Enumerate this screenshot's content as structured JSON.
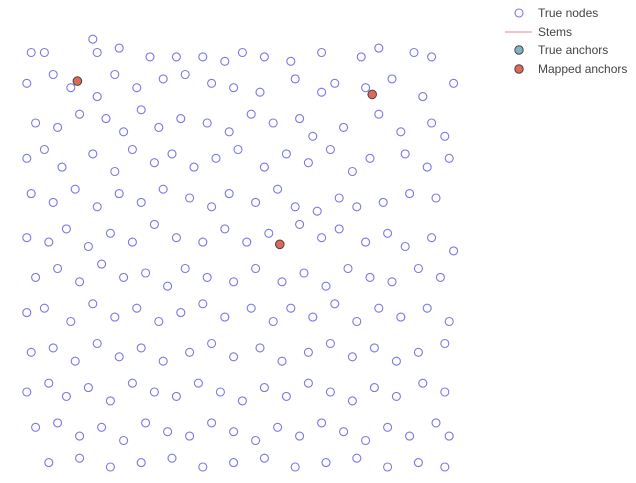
{
  "chart_data": {
    "type": "scatter",
    "title": "",
    "xlabel": "",
    "ylabel": "",
    "xlim": [
      0,
      1
    ],
    "ylim": [
      0,
      1
    ],
    "grid": false,
    "legend_position": "top-right",
    "colors": {
      "true_nodes": "#7b78e6",
      "stems": "#e88a8a",
      "true_anchors": "#7fb4c4",
      "mapped_anchors": "#e0685a",
      "anchor_edge": "#444444"
    },
    "legend": [
      {
        "key": "true_nodes",
        "label": "True nodes",
        "symbol": "open-circle"
      },
      {
        "key": "stems",
        "label": "Stems",
        "symbol": "line"
      },
      {
        "key": "true_anchors",
        "label": "True anchors",
        "symbol": "filled-circle"
      },
      {
        "key": "mapped_anchors",
        "label": "Mapped anchors",
        "symbol": "filled-circle"
      }
    ],
    "series": [
      {
        "key": "mapped_anchors",
        "points": [
          [
            0.135,
            0.875
          ],
          [
            0.805,
            0.845
          ],
          [
            0.595,
            0.505
          ]
        ]
      },
      {
        "key": "true_nodes",
        "points": [
          [
            0.03,
            0.94
          ],
          [
            0.06,
            0.94
          ],
          [
            0.17,
            0.97
          ],
          [
            0.18,
            0.94
          ],
          [
            0.23,
            0.95
          ],
          [
            0.3,
            0.93
          ],
          [
            0.36,
            0.93
          ],
          [
            0.42,
            0.93
          ],
          [
            0.47,
            0.92
          ],
          [
            0.51,
            0.94
          ],
          [
            0.56,
            0.93
          ],
          [
            0.62,
            0.92
          ],
          [
            0.69,
            0.94
          ],
          [
            0.78,
            0.93
          ],
          [
            0.82,
            0.95
          ],
          [
            0.9,
            0.94
          ],
          [
            0.94,
            0.93
          ],
          [
            0.02,
            0.87
          ],
          [
            0.08,
            0.89
          ],
          [
            0.12,
            0.86
          ],
          [
            0.18,
            0.84
          ],
          [
            0.22,
            0.89
          ],
          [
            0.27,
            0.86
          ],
          [
            0.33,
            0.88
          ],
          [
            0.38,
            0.89
          ],
          [
            0.44,
            0.87
          ],
          [
            0.49,
            0.86
          ],
          [
            0.55,
            0.85
          ],
          [
            0.63,
            0.88
          ],
          [
            0.69,
            0.85
          ],
          [
            0.72,
            0.87
          ],
          [
            0.79,
            0.86
          ],
          [
            0.85,
            0.88
          ],
          [
            0.92,
            0.84
          ],
          [
            0.99,
            0.87
          ],
          [
            0.04,
            0.78
          ],
          [
            0.09,
            0.77
          ],
          [
            0.14,
            0.8
          ],
          [
            0.2,
            0.79
          ],
          [
            0.24,
            0.76
          ],
          [
            0.28,
            0.81
          ],
          [
            0.32,
            0.77
          ],
          [
            0.37,
            0.79
          ],
          [
            0.43,
            0.78
          ],
          [
            0.48,
            0.76
          ],
          [
            0.53,
            0.8
          ],
          [
            0.58,
            0.78
          ],
          [
            0.64,
            0.79
          ],
          [
            0.67,
            0.75
          ],
          [
            0.74,
            0.77
          ],
          [
            0.82,
            0.8
          ],
          [
            0.87,
            0.76
          ],
          [
            0.94,
            0.78
          ],
          [
            0.97,
            0.75
          ],
          [
            0.02,
            0.7
          ],
          [
            0.06,
            0.72
          ],
          [
            0.1,
            0.68
          ],
          [
            0.17,
            0.71
          ],
          [
            0.22,
            0.67
          ],
          [
            0.26,
            0.72
          ],
          [
            0.31,
            0.69
          ],
          [
            0.35,
            0.71
          ],
          [
            0.4,
            0.68
          ],
          [
            0.45,
            0.7
          ],
          [
            0.5,
            0.72
          ],
          [
            0.56,
            0.68
          ],
          [
            0.61,
            0.71
          ],
          [
            0.66,
            0.69
          ],
          [
            0.71,
            0.72
          ],
          [
            0.76,
            0.67
          ],
          [
            0.8,
            0.7
          ],
          [
            0.88,
            0.71
          ],
          [
            0.93,
            0.68
          ],
          [
            0.98,
            0.7
          ],
          [
            0.03,
            0.62
          ],
          [
            0.08,
            0.6
          ],
          [
            0.13,
            0.63
          ],
          [
            0.18,
            0.59
          ],
          [
            0.23,
            0.62
          ],
          [
            0.28,
            0.6
          ],
          [
            0.33,
            0.63
          ],
          [
            0.39,
            0.61
          ],
          [
            0.44,
            0.59
          ],
          [
            0.48,
            0.62
          ],
          [
            0.54,
            0.6
          ],
          [
            0.59,
            0.63
          ],
          [
            0.63,
            0.59
          ],
          [
            0.68,
            0.58
          ],
          [
            0.73,
            0.61
          ],
          [
            0.77,
            0.59
          ],
          [
            0.83,
            0.6
          ],
          [
            0.89,
            0.62
          ],
          [
            0.95,
            0.61
          ],
          [
            0.02,
            0.52
          ],
          [
            0.07,
            0.51
          ],
          [
            0.11,
            0.54
          ],
          [
            0.16,
            0.5
          ],
          [
            0.21,
            0.53
          ],
          [
            0.26,
            0.51
          ],
          [
            0.31,
            0.55
          ],
          [
            0.36,
            0.52
          ],
          [
            0.42,
            0.51
          ],
          [
            0.47,
            0.54
          ],
          [
            0.52,
            0.51
          ],
          [
            0.57,
            0.53
          ],
          [
            0.64,
            0.55
          ],
          [
            0.69,
            0.52
          ],
          [
            0.73,
            0.54
          ],
          [
            0.79,
            0.51
          ],
          [
            0.84,
            0.53
          ],
          [
            0.88,
            0.5
          ],
          [
            0.94,
            0.52
          ],
          [
            0.99,
            0.49
          ],
          [
            0.04,
            0.43
          ],
          [
            0.09,
            0.45
          ],
          [
            0.14,
            0.42
          ],
          [
            0.19,
            0.46
          ],
          [
            0.24,
            0.43
          ],
          [
            0.29,
            0.44
          ],
          [
            0.34,
            0.41
          ],
          [
            0.38,
            0.45
          ],
          [
            0.43,
            0.43
          ],
          [
            0.49,
            0.42
          ],
          [
            0.54,
            0.45
          ],
          [
            0.6,
            0.42
          ],
          [
            0.65,
            0.44
          ],
          [
            0.7,
            0.41
          ],
          [
            0.75,
            0.45
          ],
          [
            0.8,
            0.43
          ],
          [
            0.85,
            0.42
          ],
          [
            0.91,
            0.45
          ],
          [
            0.96,
            0.43
          ],
          [
            0.02,
            0.35
          ],
          [
            0.06,
            0.36
          ],
          [
            0.12,
            0.33
          ],
          [
            0.17,
            0.37
          ],
          [
            0.22,
            0.34
          ],
          [
            0.27,
            0.36
          ],
          [
            0.32,
            0.33
          ],
          [
            0.37,
            0.35
          ],
          [
            0.42,
            0.37
          ],
          [
            0.47,
            0.34
          ],
          [
            0.53,
            0.36
          ],
          [
            0.58,
            0.33
          ],
          [
            0.62,
            0.36
          ],
          [
            0.67,
            0.34
          ],
          [
            0.72,
            0.37
          ],
          [
            0.77,
            0.33
          ],
          [
            0.82,
            0.36
          ],
          [
            0.87,
            0.34
          ],
          [
            0.93,
            0.36
          ],
          [
            0.98,
            0.33
          ],
          [
            0.03,
            0.26
          ],
          [
            0.08,
            0.27
          ],
          [
            0.13,
            0.24
          ],
          [
            0.18,
            0.28
          ],
          [
            0.23,
            0.25
          ],
          [
            0.28,
            0.27
          ],
          [
            0.33,
            0.24
          ],
          [
            0.39,
            0.26
          ],
          [
            0.44,
            0.28
          ],
          [
            0.49,
            0.25
          ],
          [
            0.55,
            0.27
          ],
          [
            0.6,
            0.24
          ],
          [
            0.66,
            0.26
          ],
          [
            0.71,
            0.28
          ],
          [
            0.76,
            0.25
          ],
          [
            0.81,
            0.27
          ],
          [
            0.86,
            0.24
          ],
          [
            0.91,
            0.26
          ],
          [
            0.97,
            0.28
          ],
          [
            0.02,
            0.17
          ],
          [
            0.07,
            0.19
          ],
          [
            0.11,
            0.16
          ],
          [
            0.16,
            0.18
          ],
          [
            0.21,
            0.15
          ],
          [
            0.26,
            0.19
          ],
          [
            0.31,
            0.17
          ],
          [
            0.36,
            0.16
          ],
          [
            0.41,
            0.19
          ],
          [
            0.46,
            0.17
          ],
          [
            0.51,
            0.15
          ],
          [
            0.56,
            0.18
          ],
          [
            0.61,
            0.16
          ],
          [
            0.66,
            0.19
          ],
          [
            0.71,
            0.17
          ],
          [
            0.76,
            0.15
          ],
          [
            0.81,
            0.18
          ],
          [
            0.86,
            0.16
          ],
          [
            0.92,
            0.19
          ],
          [
            0.97,
            0.17
          ],
          [
            0.04,
            0.09
          ],
          [
            0.09,
            0.1
          ],
          [
            0.14,
            0.07
          ],
          [
            0.19,
            0.09
          ],
          [
            0.24,
            0.06
          ],
          [
            0.29,
            0.1
          ],
          [
            0.34,
            0.08
          ],
          [
            0.39,
            0.07
          ],
          [
            0.44,
            0.1
          ],
          [
            0.49,
            0.08
          ],
          [
            0.54,
            0.06
          ],
          [
            0.59,
            0.09
          ],
          [
            0.64,
            0.07
          ],
          [
            0.69,
            0.1
          ],
          [
            0.74,
            0.08
          ],
          [
            0.79,
            0.06
          ],
          [
            0.84,
            0.09
          ],
          [
            0.89,
            0.07
          ],
          [
            0.95,
            0.1
          ],
          [
            0.98,
            0.07
          ],
          [
            0.07,
            0.01
          ],
          [
            0.14,
            0.02
          ],
          [
            0.21,
            0.0
          ],
          [
            0.28,
            0.01
          ],
          [
            0.35,
            0.02
          ],
          [
            0.42,
            0.0
          ],
          [
            0.49,
            0.01
          ],
          [
            0.56,
            0.02
          ],
          [
            0.63,
            0.0
          ],
          [
            0.7,
            0.01
          ],
          [
            0.77,
            0.02
          ],
          [
            0.84,
            0.0
          ],
          [
            0.91,
            0.01
          ],
          [
            0.97,
            0.0
          ]
        ]
      }
    ]
  }
}
